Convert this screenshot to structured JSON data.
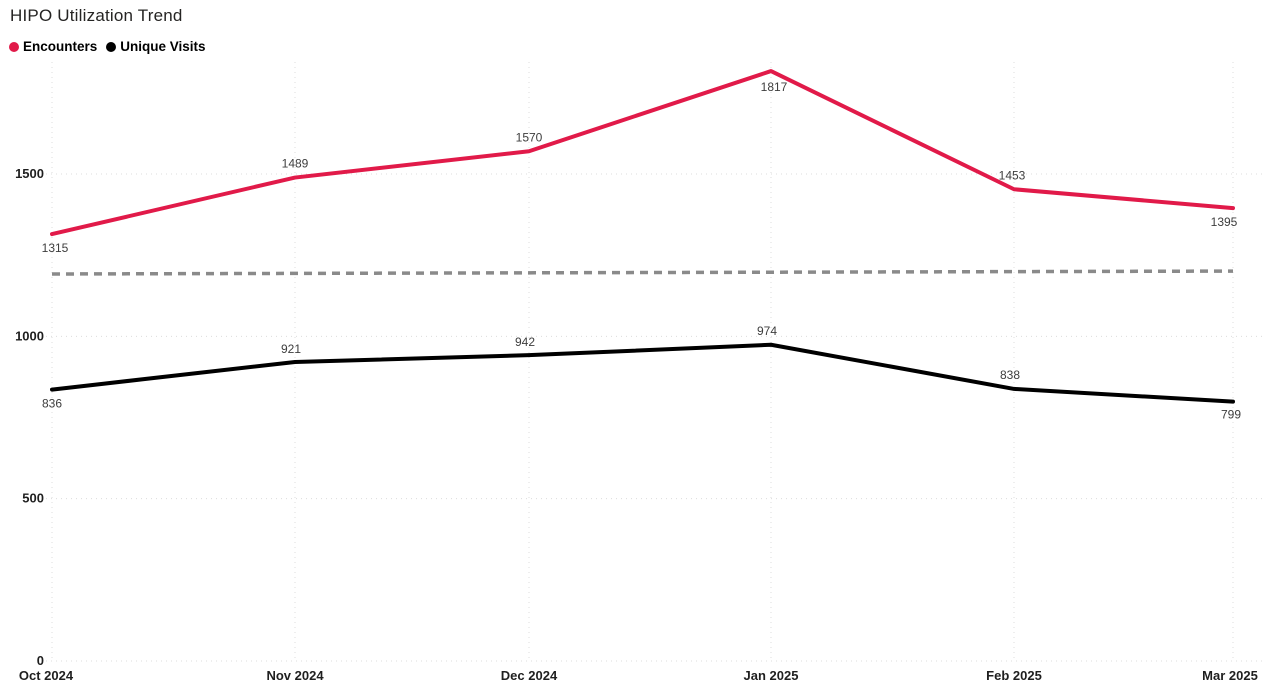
{
  "title": "HIPO Utilization Trend",
  "legend": {
    "items": [
      {
        "label": "Encounters",
        "color": "#E11A49",
        "marker": "circle-icon"
      },
      {
        "label": "Unique Visits",
        "color": "#000000",
        "marker": "circle-icon"
      }
    ]
  },
  "colors": {
    "encounters": "#E11A49",
    "unique_visits": "#000000",
    "reference_line": "#8A8A8A",
    "gridline": "#DCDCDC",
    "axis_text": "#1F1F1F",
    "data_label_text": "#3D3D3D",
    "background": "#FFFFFF"
  },
  "chart_data": {
    "type": "line",
    "title": "HIPO Utilization Trend",
    "categories": [
      "Oct 2024",
      "Nov 2024",
      "Dec 2024",
      "Jan 2025",
      "Feb 2025",
      "Mar 2025"
    ],
    "series": [
      {
        "name": "Encounters",
        "color": "#E11A49",
        "values": [
          1315,
          1489,
          1570,
          1817,
          1453,
          1395
        ]
      },
      {
        "name": "Unique Visits",
        "color": "#000000",
        "values": [
          836,
          921,
          942,
          974,
          838,
          799
        ]
      }
    ],
    "reference_line": {
      "style": "dashed",
      "color": "#8A8A8A",
      "start_value": 1192,
      "end_value": 1201
    },
    "y_ticks": [
      0,
      500,
      1000,
      1500
    ],
    "ylim": [
      0,
      1870
    ],
    "xlabel": "",
    "ylabel": "",
    "grid": "dotted",
    "data_labels": true,
    "legend_position": "top-left"
  }
}
